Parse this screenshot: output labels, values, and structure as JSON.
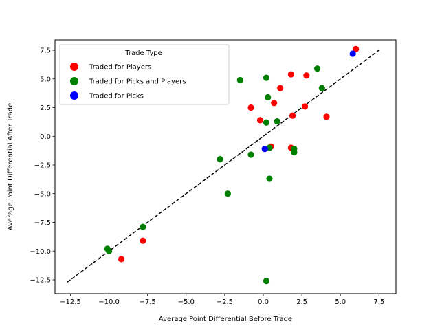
{
  "chart_data": {
    "type": "scatter",
    "title": "",
    "xlabel": "Average Point Differential Before Trade",
    "ylabel": "Average Point Differential After Trade",
    "xlim": [
      -13.5,
      8.6
    ],
    "ylim": [
      -13.7,
      8.4
    ],
    "xticks": [
      -12.5,
      -10.0,
      -7.5,
      -5.0,
      -2.5,
      0.0,
      2.5,
      5.0,
      7.5
    ],
    "yticks": [
      -12.5,
      -10.0,
      -7.5,
      -5.0,
      -2.5,
      0.0,
      2.5,
      5.0,
      7.5
    ],
    "xtick_labels": [
      "−12.5",
      "−10.0",
      "−7.5",
      "−5.0",
      "−2.5",
      "0.0",
      "2.5",
      "5.0",
      "7.5"
    ],
    "ytick_labels": [
      "−12.5",
      "−10.0",
      "−7.5",
      "−5.0",
      "−2.5",
      "0.0",
      "2.5",
      "5.0",
      "7.5"
    ],
    "grid": false,
    "legend": {
      "title": "Trade Type",
      "placement": "top-left"
    },
    "reference_line": {
      "style": "dashed",
      "color": "#000000",
      "x": [
        -12.7,
        7.6
      ],
      "y": [
        -12.7,
        7.6
      ]
    },
    "series": [
      {
        "name": "Traded for Players",
        "color": "#ff0000",
        "points": [
          {
            "x": 6.0,
            "y": 7.6
          },
          {
            "x": 1.8,
            "y": 5.4
          },
          {
            "x": 2.8,
            "y": 5.3
          },
          {
            "x": 1.1,
            "y": 4.2
          },
          {
            "x": 0.7,
            "y": 2.9
          },
          {
            "x": -0.8,
            "y": 2.5
          },
          {
            "x": 2.7,
            "y": 2.6
          },
          {
            "x": 1.9,
            "y": 1.8
          },
          {
            "x": 4.1,
            "y": 1.7
          },
          {
            "x": -0.2,
            "y": 1.4
          },
          {
            "x": 0.5,
            "y": -0.9
          },
          {
            "x": 1.8,
            "y": -1.0
          },
          {
            "x": -7.8,
            "y": -9.1
          },
          {
            "x": -9.2,
            "y": -10.7
          }
        ]
      },
      {
        "name": "Traded for Picks and Players",
        "color": "#008000",
        "points": [
          {
            "x": 3.5,
            "y": 5.9
          },
          {
            "x": 0.2,
            "y": 5.1
          },
          {
            "x": -1.5,
            "y": 4.9
          },
          {
            "x": 3.8,
            "y": 4.2
          },
          {
            "x": 0.3,
            "y": 3.4
          },
          {
            "x": 0.9,
            "y": 1.3
          },
          {
            "x": 0.2,
            "y": 1.2
          },
          {
            "x": 0.4,
            "y": -1.0
          },
          {
            "x": 2.0,
            "y": -1.1
          },
          {
            "x": 2.0,
            "y": -1.4
          },
          {
            "x": -0.8,
            "y": -1.6
          },
          {
            "x": -2.8,
            "y": -2.0
          },
          {
            "x": 0.4,
            "y": -3.7
          },
          {
            "x": -2.3,
            "y": -5.0
          },
          {
            "x": -7.8,
            "y": -7.9
          },
          {
            "x": -10.1,
            "y": -9.8
          },
          {
            "x": -10.0,
            "y": -10.0
          },
          {
            "x": 0.2,
            "y": -12.6
          }
        ]
      },
      {
        "name": "Traded for Picks",
        "color": "#0000ff",
        "points": [
          {
            "x": 5.8,
            "y": 7.2
          },
          {
            "x": 0.1,
            "y": -1.1
          }
        ]
      }
    ]
  }
}
